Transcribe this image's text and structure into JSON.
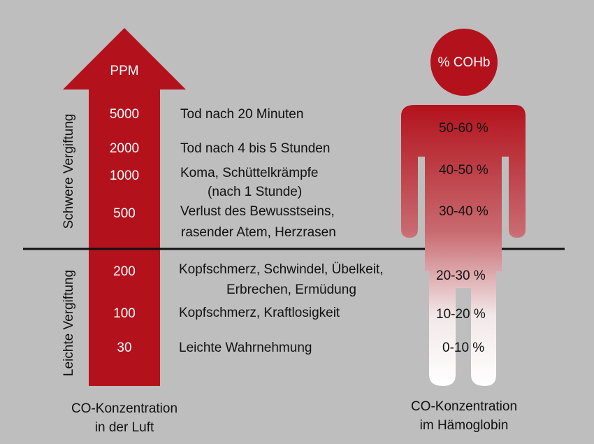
{
  "arrow": {
    "unit": "PPM",
    "color": "#b3121c",
    "levels": [
      {
        "ppm": "5000",
        "effect": [
          "Tod nach 20 Minuten"
        ]
      },
      {
        "ppm": "2000",
        "effect": [
          "Tod nach 4 bis 5 Stunden"
        ]
      },
      {
        "ppm": "1000",
        "effect": [
          "Koma, Schüttelkrämpfe",
          "(nach 1 Stunde)"
        ]
      },
      {
        "ppm": "500",
        "effect": [
          "Verlust des Bewusstseins,",
          "rasender Atem, Herzrasen"
        ]
      },
      {
        "ppm": "200",
        "effect": [
          "Kopfschmerz, Schwindel, Übelkeit,",
          "Erbrechen, Ermüdung"
        ]
      },
      {
        "ppm": "100",
        "effect": [
          "Kopfschmerz, Kraftlosigkeit"
        ]
      },
      {
        "ppm": "30",
        "effect": [
          "Leichte Wahrnehmung"
        ]
      }
    ],
    "caption": [
      "CO-Konzentration",
      "in der Luft"
    ]
  },
  "severity": {
    "severe": "Schwere Vergiftung",
    "mild": "Leichte Vergiftung"
  },
  "figure": {
    "unit": "% COHb",
    "color": "#b3121c",
    "ranges": [
      "50-60 %",
      "40-50 %",
      "30-40 %",
      "20-30 %",
      "10-20 %",
      "0-10 %"
    ],
    "caption": [
      "CO-Konzentration",
      "im Hämoglobin"
    ]
  }
}
